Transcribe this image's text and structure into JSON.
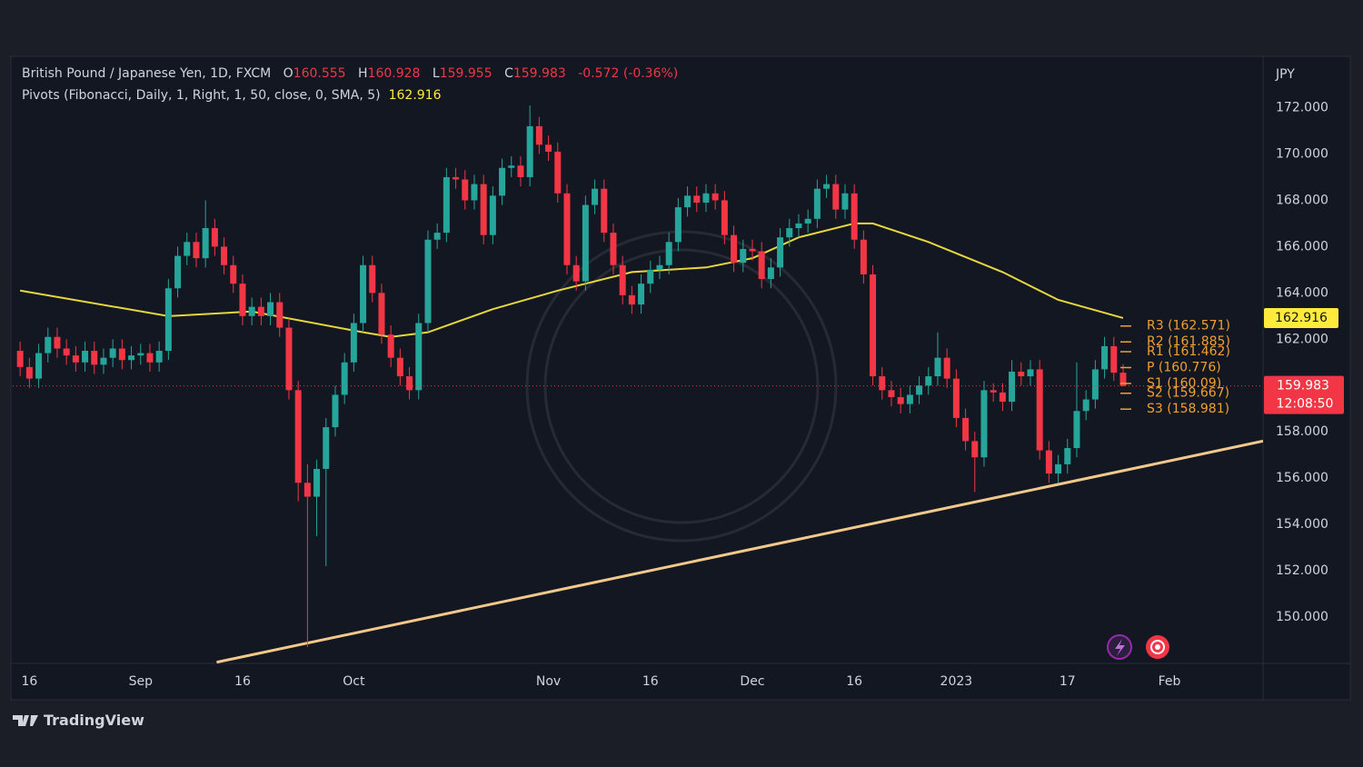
{
  "chart_data": {
    "type": "candlestick",
    "header": {
      "symbol": "British Pound / Japanese Yen, 1D, FXCM",
      "ohlc": [
        {
          "name": "O",
          "value": 160.555
        },
        {
          "name": "H",
          "value": 160.928
        },
        {
          "name": "L",
          "value": 159.955
        },
        {
          "name": "C",
          "value": 159.983
        }
      ],
      "change": -0.572,
      "change_pct": "(-0.36%)",
      "indicator": "Pivots (Fibonacci, Daily, 1, Right, 1, 50, close, 0, SMA, 5)",
      "indicator_value": 162.916
    },
    "currency": "JPY",
    "countdown": "12:08:50",
    "open": [
      161.5,
      160.8,
      160.3,
      161.4,
      162.1,
      161.6,
      161.3,
      161.0,
      161.5,
      160.9,
      161.2,
      161.6,
      161.1,
      161.3,
      161.4,
      161.0,
      161.5,
      164.2,
      165.6,
      166.2,
      165.5,
      166.8,
      166.0,
      165.2,
      164.4,
      163.0,
      163.4,
      163.0,
      163.6,
      162.5,
      159.8,
      155.8,
      155.2,
      156.4,
      158.2,
      159.6,
      161.0,
      162.7,
      165.2,
      164.0,
      162.2,
      161.2,
      160.4,
      159.8,
      162.7,
      166.3,
      166.6,
      169.0,
      168.9,
      168.0,
      168.7,
      166.5,
      168.2,
      169.4,
      169.5,
      169.0,
      171.2,
      170.4,
      170.1,
      168.3,
      165.2,
      164.5,
      167.8,
      168.5,
      166.6,
      165.2,
      163.9,
      163.5,
      164.4,
      165.0,
      165.2,
      166.2,
      167.7,
      168.2,
      167.9,
      168.3,
      168.0,
      166.5,
      165.3,
      165.9,
      165.8,
      164.6,
      165.1,
      166.4,
      166.8,
      167.0,
      167.2,
      168.5,
      168.7,
      167.6,
      168.3,
      166.3,
      164.8,
      160.4,
      159.8,
      159.5,
      159.2,
      159.6,
      160.0,
      160.4,
      161.2,
      160.3,
      158.6,
      157.6,
      156.9,
      159.8,
      159.7,
      159.3,
      160.6,
      160.4,
      160.7,
      157.2,
      156.2,
      156.6,
      157.3,
      158.9,
      159.4,
      160.7,
      161.7,
      160.555
    ],
    "high": [
      161.9,
      161.2,
      161.8,
      162.5,
      162.5,
      162.0,
      161.7,
      161.9,
      161.9,
      161.6,
      162.0,
      162.0,
      161.7,
      161.8,
      161.8,
      161.9,
      164.6,
      166.0,
      166.6,
      166.6,
      168.0,
      167.2,
      166.4,
      165.6,
      164.8,
      163.8,
      163.8,
      164.0,
      164.0,
      162.9,
      160.2,
      156.6,
      156.8,
      158.6,
      160.0,
      161.4,
      163.1,
      165.6,
      165.6,
      164.4,
      162.6,
      161.6,
      160.8,
      163.1,
      166.7,
      167.0,
      169.4,
      169.4,
      169.3,
      169.1,
      169.1,
      168.6,
      169.8,
      169.9,
      169.9,
      172.1,
      171.6,
      170.8,
      170.5,
      168.7,
      165.6,
      168.2,
      168.9,
      168.9,
      167.0,
      165.6,
      164.3,
      164.8,
      165.4,
      165.6,
      166.6,
      168.1,
      168.6,
      168.6,
      168.7,
      168.7,
      168.4,
      166.9,
      166.3,
      166.3,
      166.2,
      165.5,
      166.8,
      167.2,
      167.4,
      167.6,
      168.9,
      169.1,
      169.1,
      168.7,
      168.7,
      166.7,
      165.2,
      160.8,
      160.2,
      159.9,
      160.0,
      160.4,
      160.8,
      162.3,
      161.6,
      160.7,
      159.0,
      158.0,
      160.2,
      160.1,
      160.1,
      161.1,
      161.0,
      161.1,
      161.1,
      157.6,
      157.0,
      157.7,
      161.0,
      159.8,
      161.1,
      162.1,
      162.1,
      160.928
    ],
    "low": [
      160.4,
      159.9,
      159.9,
      161.0,
      161.2,
      160.9,
      160.6,
      160.6,
      160.5,
      160.5,
      160.8,
      160.7,
      160.7,
      160.9,
      160.6,
      160.6,
      161.1,
      163.8,
      165.2,
      165.1,
      165.1,
      165.6,
      164.8,
      164.0,
      162.6,
      162.6,
      162.6,
      162.6,
      162.1,
      159.4,
      155.0,
      148.7,
      153.5,
      152.2,
      157.8,
      159.2,
      160.6,
      162.3,
      163.6,
      161.8,
      160.8,
      160.0,
      159.4,
      159.4,
      162.3,
      165.9,
      166.2,
      168.5,
      167.6,
      167.6,
      166.1,
      166.1,
      167.8,
      169.0,
      168.6,
      168.6,
      170.0,
      169.7,
      167.9,
      164.8,
      164.1,
      164.1,
      167.4,
      166.2,
      164.8,
      163.5,
      163.1,
      163.1,
      164.0,
      164.6,
      164.8,
      165.8,
      167.3,
      167.5,
      167.5,
      167.6,
      166.1,
      164.9,
      164.9,
      165.4,
      164.2,
      164.2,
      164.7,
      166.0,
      166.4,
      166.6,
      166.8,
      168.1,
      167.2,
      167.2,
      165.9,
      164.4,
      160.0,
      159.4,
      159.1,
      158.8,
      158.8,
      159.2,
      159.6,
      160.0,
      159.9,
      158.2,
      157.2,
      155.4,
      156.5,
      159.3,
      158.9,
      158.9,
      160.0,
      160.0,
      156.8,
      155.8,
      155.8,
      156.2,
      156.9,
      158.5,
      159.0,
      160.3,
      160.2,
      159.955
    ],
    "close": [
      160.8,
      160.3,
      161.4,
      162.1,
      161.6,
      161.3,
      161.0,
      161.5,
      160.9,
      161.2,
      161.6,
      161.1,
      161.3,
      161.4,
      161.0,
      161.5,
      164.2,
      165.6,
      166.2,
      165.5,
      166.8,
      166.0,
      165.2,
      164.4,
      163.0,
      163.4,
      163.0,
      163.6,
      162.5,
      159.8,
      155.8,
      155.2,
      156.4,
      158.2,
      159.6,
      161.0,
      162.7,
      165.2,
      164.0,
      162.2,
      161.2,
      160.4,
      159.8,
      162.7,
      166.3,
      166.6,
      169.0,
      168.9,
      168.0,
      168.7,
      166.5,
      168.2,
      169.4,
      169.5,
      169.0,
      171.2,
      170.4,
      170.1,
      168.3,
      165.2,
      164.5,
      167.8,
      168.5,
      166.6,
      165.2,
      163.9,
      163.5,
      164.4,
      165.0,
      165.2,
      166.2,
      167.7,
      168.2,
      167.9,
      168.3,
      168.0,
      166.5,
      165.3,
      165.9,
      165.8,
      164.6,
      165.1,
      166.4,
      166.8,
      167.0,
      167.2,
      168.5,
      168.7,
      167.6,
      168.3,
      166.3,
      164.8,
      160.4,
      159.8,
      159.5,
      159.2,
      159.6,
      160.0,
      160.4,
      161.2,
      160.3,
      158.6,
      157.6,
      156.9,
      159.8,
      159.7,
      159.3,
      160.6,
      160.4,
      160.7,
      157.2,
      156.2,
      156.6,
      157.3,
      158.9,
      159.4,
      160.7,
      161.7,
      160.555,
      159.983
    ],
    "colors": {
      "up": "#26a69a",
      "down": "#f23645"
    },
    "sma": {
      "color": "#e6d83c",
      "x": [
        0,
        16,
        25,
        37,
        40,
        44,
        51,
        58,
        66,
        74,
        79,
        84,
        90,
        92,
        98,
        106,
        112,
        119
      ],
      "values": [
        164.1,
        163.0,
        163.2,
        162.3,
        162.1,
        162.3,
        163.3,
        164.1,
        164.9,
        165.1,
        165.5,
        166.4,
        167.0,
        167.0,
        166.2,
        164.9,
        163.7,
        162.916
      ]
    },
    "trendline": {
      "color": "#f2c98b",
      "x": [
        21.2,
        134.1
      ],
      "values": [
        148.05,
        157.6
      ]
    },
    "pivot_color": "#f0a030",
    "pivots": [
      {
        "label": "R3 (162.571)",
        "value": 162.571
      },
      {
        "label": "R2 (161.885)",
        "value": 161.885
      },
      {
        "label": "R1 (161.462)",
        "value": 161.462
      },
      {
        "label": "P (160.776)",
        "value": 160.776
      },
      {
        "label": "S1 (160.09)",
        "value": 160.09
      },
      {
        "label": "S2 (159.667)",
        "value": 159.667
      },
      {
        "label": "S3 (158.981)",
        "value": 158.981
      }
    ],
    "xlim": [
      -0.8,
      134.1
    ],
    "ylim": [
      148,
      174.1
    ],
    "xticks": [
      {
        "value": 1,
        "label": "16"
      },
      {
        "value": 13,
        "label": "Sep"
      },
      {
        "value": 24,
        "label": "16"
      },
      {
        "value": 36,
        "label": "Oct"
      },
      {
        "value": 57,
        "label": "Nov"
      },
      {
        "value": 68,
        "label": "16"
      },
      {
        "value": 79,
        "label": "Dec"
      },
      {
        "value": 90,
        "label": "16"
      },
      {
        "value": 101,
        "label": "2023"
      },
      {
        "value": 113,
        "label": "17"
      },
      {
        "value": 124,
        "label": "Feb"
      }
    ],
    "yticks": [
      {
        "value": 150,
        "label": "150.000"
      },
      {
        "value": 152,
        "label": "152.000"
      },
      {
        "value": 154,
        "label": "154.000"
      },
      {
        "value": 156,
        "label": "156.000"
      },
      {
        "value": 158,
        "label": "158.000"
      },
      {
        "value": 160,
        "label": "160.000"
      },
      {
        "value": 162,
        "label": "162.000"
      },
      {
        "value": 164,
        "label": "164.000"
      },
      {
        "value": 166,
        "label": "166.000"
      },
      {
        "value": 168,
        "label": "168.000"
      },
      {
        "value": 170,
        "label": "170.000"
      },
      {
        "value": 172,
        "label": "172.000"
      }
    ]
  },
  "brand": "TradingView"
}
